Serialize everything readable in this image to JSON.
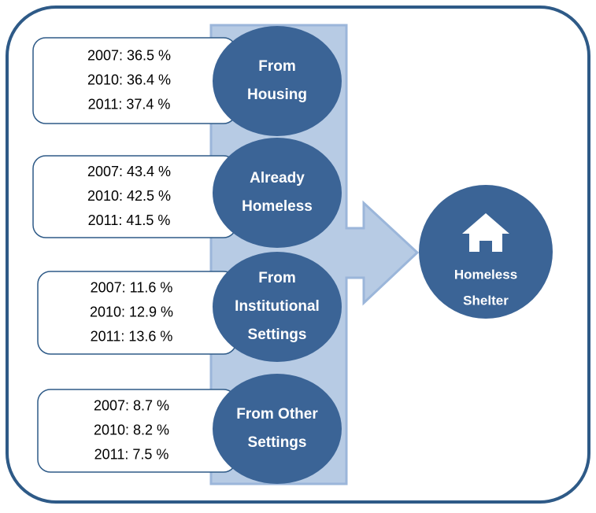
{
  "groups": [
    {
      "label": [
        "From",
        "Housing"
      ],
      "stats": [
        "2007: 36.5 %",
        "2010: 36.4 %",
        "2011: 37.4 %"
      ]
    },
    {
      "label": [
        "Already",
        "Homeless"
      ],
      "stats": [
        "2007: 43.4 %",
        "2010: 42.5 %",
        "2011: 41.5 %"
      ]
    },
    {
      "label": [
        "From",
        "Institutional",
        "Settings"
      ],
      "stats": [
        "2007: 11.6 %",
        "2010: 12.9 %",
        "2011: 13.6 %"
      ]
    },
    {
      "label": [
        "From Other",
        "Settings"
      ],
      "stats": [
        "2007: 8.7 %",
        "2010: 8.2 %",
        "2011: 7.5 %"
      ]
    }
  ],
  "target": {
    "label": [
      "Homeless",
      "Shelter"
    ]
  }
}
